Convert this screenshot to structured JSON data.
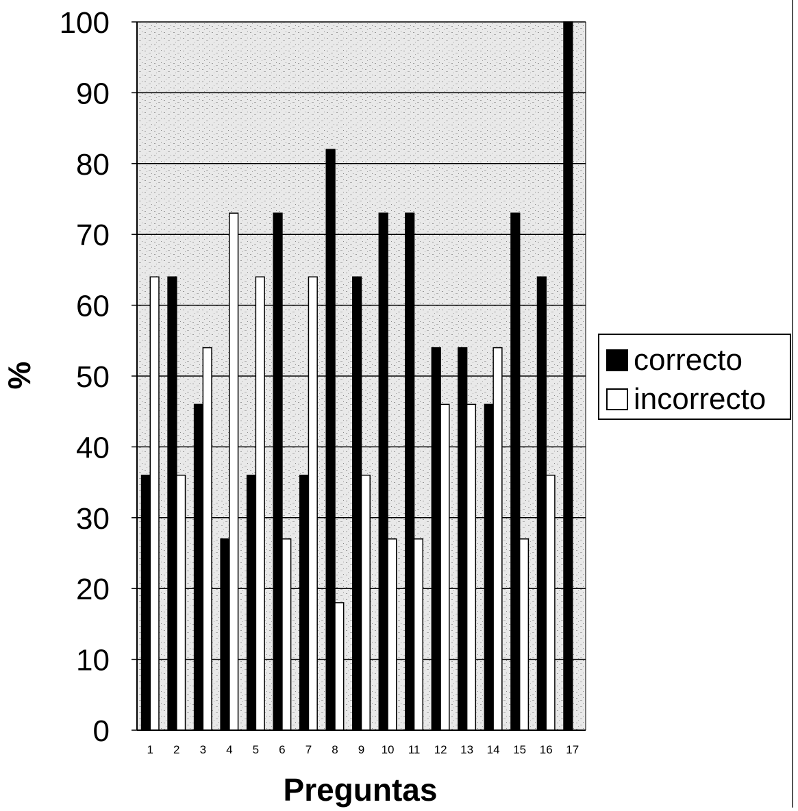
{
  "chart_data": {
    "type": "bar",
    "title": "",
    "xlabel": "Preguntas",
    "ylabel": "%",
    "ylim": [
      0,
      100
    ],
    "yticks": [
      0,
      10,
      20,
      30,
      40,
      50,
      60,
      70,
      80,
      90,
      100
    ],
    "categories": [
      "1",
      "2",
      "3",
      "4",
      "5",
      "6",
      "7",
      "8",
      "9",
      "10",
      "11",
      "12",
      "13",
      "14",
      "15",
      "16",
      "17"
    ],
    "series": [
      {
        "name": "correcto",
        "color": "#000000",
        "values": [
          36,
          64,
          46,
          27,
          36,
          73,
          36,
          82,
          64,
          73,
          73,
          54,
          54,
          46,
          73,
          64,
          100
        ]
      },
      {
        "name": "incorrecto",
        "color": "#ffffff",
        "values": [
          64,
          36,
          54,
          73,
          64,
          27,
          64,
          18,
          36,
          27,
          27,
          46,
          46,
          54,
          27,
          36,
          0
        ]
      }
    ],
    "grid": true,
    "legend_position": "right"
  }
}
